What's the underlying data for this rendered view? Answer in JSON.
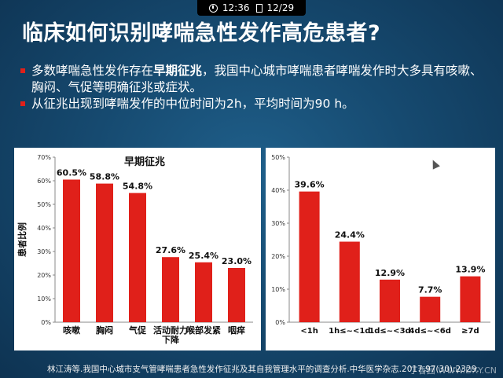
{
  "status_bar": {
    "time": "12:36",
    "page": "12/29"
  },
  "title": "临床如何识别哮喘急性发作高危患者?",
  "bullets": [
    {
      "pre": "多数哮喘急性发作存在",
      "strong": "早期征兆",
      "post": "，我国中心城市哮喘患者哮喘发作时大多具有咳嗽、胸闷、气促等明确征兆或症状。"
    },
    {
      "pre": "从征兆出现到哮喘发作的中位时间为2h，平均时间为90 h。",
      "strong": "",
      "post": ""
    }
  ],
  "colors": {
    "bar": "#e0201a",
    "panel_bg": "#ffffff",
    "grid": "#cccccc",
    "title_text": "#ffffff"
  },
  "chart_data": [
    {
      "type": "bar",
      "title": "早期征兆",
      "ylabel": "患者比例",
      "xlabel": "",
      "categories": [
        "咳嗽",
        "胸闷",
        "气促",
        "活动耐力下降",
        "喉部发紧",
        "咽痒"
      ],
      "values": [
        60.5,
        58.8,
        54.8,
        27.6,
        25.4,
        23.0
      ],
      "data_labels": [
        "60.5%",
        "58.8%",
        "54.8%",
        "27.6%",
        "25.4%",
        "23.0%"
      ],
      "ylim": [
        0,
        70
      ],
      "yticks": [
        "0%",
        "10%",
        "20%",
        "30%",
        "40%",
        "50%",
        "60%",
        "70%"
      ],
      "grid": false
    },
    {
      "type": "bar",
      "title": "",
      "ylabel": "",
      "xlabel": "",
      "categories": [
        "<1h",
        "1h≤~<1d",
        "1d≤~<3d",
        "4d≤~<6d",
        "≥7d"
      ],
      "values": [
        39.6,
        24.4,
        12.9,
        7.7,
        13.9
      ],
      "data_labels": [
        "39.6%",
        "24.4%",
        "12.9%",
        "7.7%",
        "13.9%"
      ],
      "ylim": [
        0,
        50
      ],
      "yticks": [
        "0%",
        "10%",
        "20%",
        "30%",
        "40%",
        "50%"
      ],
      "grid": false
    }
  ],
  "footnote": "林江涛等.我国中心城市支气管哮喘患者急性发作征兆及其自我管理水平的调查分析.中华医学杂志.2017,97(30):2329.",
  "watermark": "丁香园 WWW.DXY.CN"
}
